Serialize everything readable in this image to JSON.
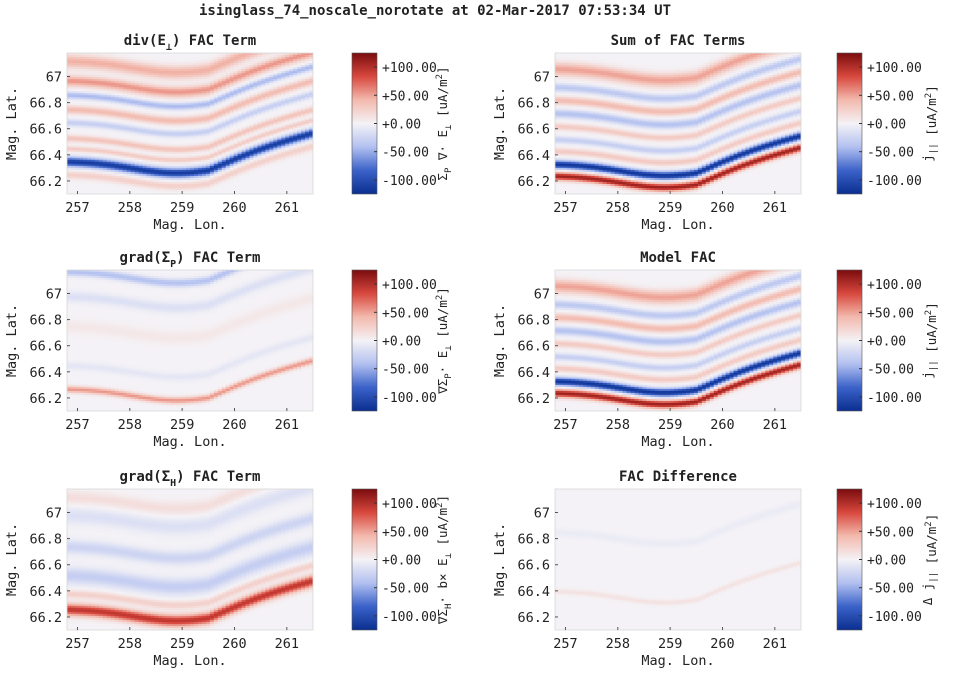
{
  "figure": {
    "title": "isinglass_74_noscale_norotate at 02-Mar-2017 07:53:34 UT"
  },
  "colorbar": {
    "ticks": [
      "+100.00",
      "+50.00",
      "+0.00",
      "-50.00",
      "-100.00"
    ],
    "tick_values": [
      100,
      50,
      0,
      -50,
      -100
    ],
    "range": [
      -125,
      125
    ],
    "colormap": [
      "#0a2f8f",
      "#3b62c9",
      "#b2c0f0",
      "#f4f2f6",
      "#f3b9ad",
      "#d8483e",
      "#7a0c0e"
    ]
  },
  "axes": {
    "xlabel": "Mag. Lon.",
    "ylabel": "Mag. Lat.",
    "xticks": [
      "257",
      "258",
      "259",
      "260",
      "261"
    ],
    "xtick_values": [
      257,
      258,
      259,
      260,
      261
    ],
    "yticks": [
      "67",
      "66.8",
      "66.6",
      "66.4",
      "66.2"
    ],
    "ytick_values": [
      67,
      66.8,
      66.6,
      66.4,
      66.2
    ],
    "xlim": [
      256.8,
      261.5
    ],
    "ylim": [
      66.1,
      67.18
    ]
  },
  "panels": [
    {
      "title_main": "div(E",
      "title_sub": "⊥",
      "title_tail": ") FAC Term",
      "title_sub_type": "sub",
      "cbar_label": "Σ_P ∇· E_⊥ [uA/m²]",
      "cbar_parts": [
        "Σ",
        "P",
        " ∇· E",
        "⊥",
        " [uA/m",
        "2",
        "]"
      ]
    },
    {
      "title_main": "Sum of FAC Terms",
      "title_sub": "",
      "title_tail": "",
      "title_sub_type": "none",
      "cbar_label": "j_|| [uA/m²]",
      "cbar_parts": [
        "j",
        "||",
        "",
        "",
        " [uA/m",
        "2",
        "]"
      ]
    },
    {
      "title_main": "grad(Σ",
      "title_sub": "P",
      "title_tail": ") FAC Term",
      "title_sub_type": "sub",
      "cbar_label": "∇Σ_P· E_⊥ [uA/m²]",
      "cbar_parts": [
        "∇Σ",
        "P",
        "· E",
        "⊥",
        " [uA/m",
        "2",
        "]"
      ]
    },
    {
      "title_main": "Model FAC",
      "title_sub": "",
      "title_tail": "",
      "title_sub_type": "none",
      "cbar_label": "j_|| [uA/m²]",
      "cbar_parts": [
        "j",
        "||",
        "",
        "",
        " [uA/m",
        "2",
        "]"
      ]
    },
    {
      "title_main": "grad(Σ",
      "title_sub": "H",
      "title_tail": ") FAC Term",
      "title_sub_type": "sub",
      "cbar_label": "∇Σ_H· b× E_⊥ [uA/m²]",
      "cbar_parts": [
        "∇Σ",
        "H",
        "· b× E",
        "⊥",
        " [uA/m",
        "2",
        "]"
      ]
    },
    {
      "title_main": "FAC Difference",
      "title_sub": "",
      "title_tail": "",
      "title_sub_type": "none",
      "cbar_label": "Δ j_|| [uA/m²]",
      "cbar_parts": [
        "Δ j",
        "||",
        "",
        "",
        " [uA/m",
        "2",
        "]"
      ]
    }
  ],
  "chart_data": [
    {
      "type": "heatmap",
      "title": "div(E⊥) FAC Term",
      "xlabel": "Mag. Lon.",
      "ylabel": "Mag. Lat.",
      "colorbar_label": "Σ_P ∇· E_⊥ [uA/m²]",
      "clim": [
        -125,
        125
      ],
      "xlim": [
        256.8,
        261.5
      ],
      "ylim": [
        66.1,
        67.18
      ],
      "bands": [
        {
          "lat_at_259": 66.35,
          "width": 0.035,
          "value": -115
        },
        {
          "lat_at_259": 66.45,
          "width": 0.02,
          "value": 30
        },
        {
          "lat_at_259": 66.25,
          "width": 0.03,
          "value": 25
        },
        {
          "lat_at_259": 66.53,
          "width": 0.025,
          "value": 35
        },
        {
          "lat_at_259": 66.65,
          "width": 0.025,
          "value": -30
        },
        {
          "lat_at_259": 66.75,
          "width": 0.03,
          "value": 40
        },
        {
          "lat_at_259": 66.86,
          "width": 0.025,
          "value": -45
        },
        {
          "lat_at_259": 66.97,
          "width": 0.04,
          "value": 55
        },
        {
          "lat_at_259": 67.12,
          "width": 0.05,
          "value": 45
        }
      ]
    },
    {
      "type": "heatmap",
      "title": "Sum of FAC Terms",
      "xlabel": "Mag. Lon.",
      "ylabel": "Mag. Lat.",
      "colorbar_label": "j_|| [uA/m²]",
      "clim": [
        -125,
        125
      ],
      "xlim": [
        256.8,
        261.5
      ],
      "ylim": [
        66.1,
        67.18
      ],
      "bands": [
        {
          "lat_at_259": 66.24,
          "width": 0.03,
          "value": 110
        },
        {
          "lat_at_259": 66.33,
          "width": 0.03,
          "value": -120
        },
        {
          "lat_at_259": 66.43,
          "width": 0.025,
          "value": 30
        },
        {
          "lat_at_259": 66.52,
          "width": 0.025,
          "value": -30
        },
        {
          "lat_at_259": 66.62,
          "width": 0.025,
          "value": 30
        },
        {
          "lat_at_259": 66.72,
          "width": 0.03,
          "value": -40
        },
        {
          "lat_at_259": 66.82,
          "width": 0.03,
          "value": 40
        },
        {
          "lat_at_259": 66.92,
          "width": 0.03,
          "value": -35
        },
        {
          "lat_at_259": 67.06,
          "width": 0.05,
          "value": 50
        }
      ]
    },
    {
      "type": "heatmap",
      "title": "grad(ΣP) FAC Term",
      "xlabel": "Mag. Lon.",
      "ylabel": "Mag. Lat.",
      "colorbar_label": "∇Σ_P· E_⊥ [uA/m²]",
      "clim": [
        -125,
        125
      ],
      "xlim": [
        256.8,
        261.5
      ],
      "ylim": [
        66.1,
        67.18
      ],
      "bands": [
        {
          "lat_at_259": 66.27,
          "width": 0.025,
          "value": 55
        },
        {
          "lat_at_259": 66.45,
          "width": 0.03,
          "value": -10
        },
        {
          "lat_at_259": 66.75,
          "width": 0.05,
          "value": 8
        },
        {
          "lat_at_259": 66.98,
          "width": 0.04,
          "value": -15
        },
        {
          "lat_at_259": 67.17,
          "width": 0.03,
          "value": -40
        }
      ]
    },
    {
      "type": "heatmap",
      "title": "Model FAC",
      "xlabel": "Mag. Lon.",
      "ylabel": "Mag. Lat.",
      "colorbar_label": "j_|| [uA/m²]",
      "clim": [
        -125,
        125
      ],
      "xlim": [
        256.8,
        261.5
      ],
      "ylim": [
        66.1,
        67.18
      ],
      "bands": [
        {
          "lat_at_259": 66.24,
          "width": 0.03,
          "value": 110
        },
        {
          "lat_at_259": 66.33,
          "width": 0.03,
          "value": -120
        },
        {
          "lat_at_259": 66.43,
          "width": 0.025,
          "value": 30
        },
        {
          "lat_at_259": 66.52,
          "width": 0.025,
          "value": -30
        },
        {
          "lat_at_259": 66.62,
          "width": 0.025,
          "value": 30
        },
        {
          "lat_at_259": 66.72,
          "width": 0.03,
          "value": -40
        },
        {
          "lat_at_259": 66.82,
          "width": 0.03,
          "value": 40
        },
        {
          "lat_at_259": 66.92,
          "width": 0.03,
          "value": -35
        },
        {
          "lat_at_259": 67.06,
          "width": 0.05,
          "value": 50
        }
      ]
    },
    {
      "type": "heatmap",
      "title": "grad(ΣH) FAC Term",
      "xlabel": "Mag. Lon.",
      "ylabel": "Mag. Lat.",
      "colorbar_label": "∇Σ_H· b× E_⊥ [uA/m²]",
      "clim": [
        -125,
        125
      ],
      "xlim": [
        256.8,
        261.5
      ],
      "ylim": [
        66.1,
        67.18
      ],
      "bands": [
        {
          "lat_at_259": 66.26,
          "width": 0.045,
          "value": 95
        },
        {
          "lat_at_259": 66.38,
          "width": 0.03,
          "value": 25
        },
        {
          "lat_at_259": 66.52,
          "width": 0.06,
          "value": -30
        },
        {
          "lat_at_259": 66.74,
          "width": 0.05,
          "value": -25
        },
        {
          "lat_at_259": 66.98,
          "width": 0.06,
          "value": -15
        },
        {
          "lat_at_259": 67.12,
          "width": 0.05,
          "value": 15
        }
      ]
    },
    {
      "type": "heatmap",
      "title": "FAC Difference",
      "xlabel": "Mag. Lon.",
      "ylabel": "Mag. Lat.",
      "colorbar_label": "Δ j_|| [uA/m²]",
      "clim": [
        -125,
        125
      ],
      "xlim": [
        256.8,
        261.5
      ],
      "ylim": [
        66.1,
        67.18
      ],
      "bands": [
        {
          "lat_at_259": 66.4,
          "width": 0.02,
          "value": 12
        },
        {
          "lat_at_259": 66.85,
          "width": 0.03,
          "value": -6
        }
      ]
    }
  ]
}
